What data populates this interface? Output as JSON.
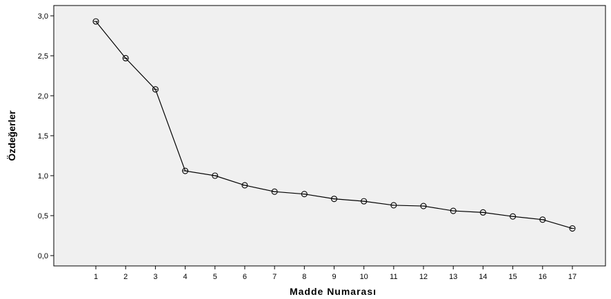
{
  "chart_data": {
    "type": "line",
    "title": "",
    "xlabel": "Madde Numarası",
    "ylabel": "Özdeğerler",
    "categories": [
      "1",
      "2",
      "3",
      "4",
      "5",
      "6",
      "7",
      "8",
      "9",
      "10",
      "11",
      "12",
      "13",
      "14",
      "15",
      "16",
      "17"
    ],
    "series": [
      {
        "values": [
          2.93,
          2.47,
          2.08,
          1.06,
          1.0,
          0.88,
          0.8,
          0.77,
          0.71,
          0.68,
          0.63,
          0.62,
          0.56,
          0.54,
          0.49,
          0.45,
          0.34
        ]
      }
    ],
    "yticks": [
      "0,0",
      "0,5",
      "1,0",
      "1,5",
      "2,0",
      "2,5",
      "3,0"
    ],
    "ylim": [
      0,
      3.1
    ],
    "grid": false,
    "legend": "none",
    "colors": {
      "plot_background": "#f0f0f0",
      "line": "#000000",
      "marker": "#000000"
    },
    "marker": "open-circle"
  }
}
